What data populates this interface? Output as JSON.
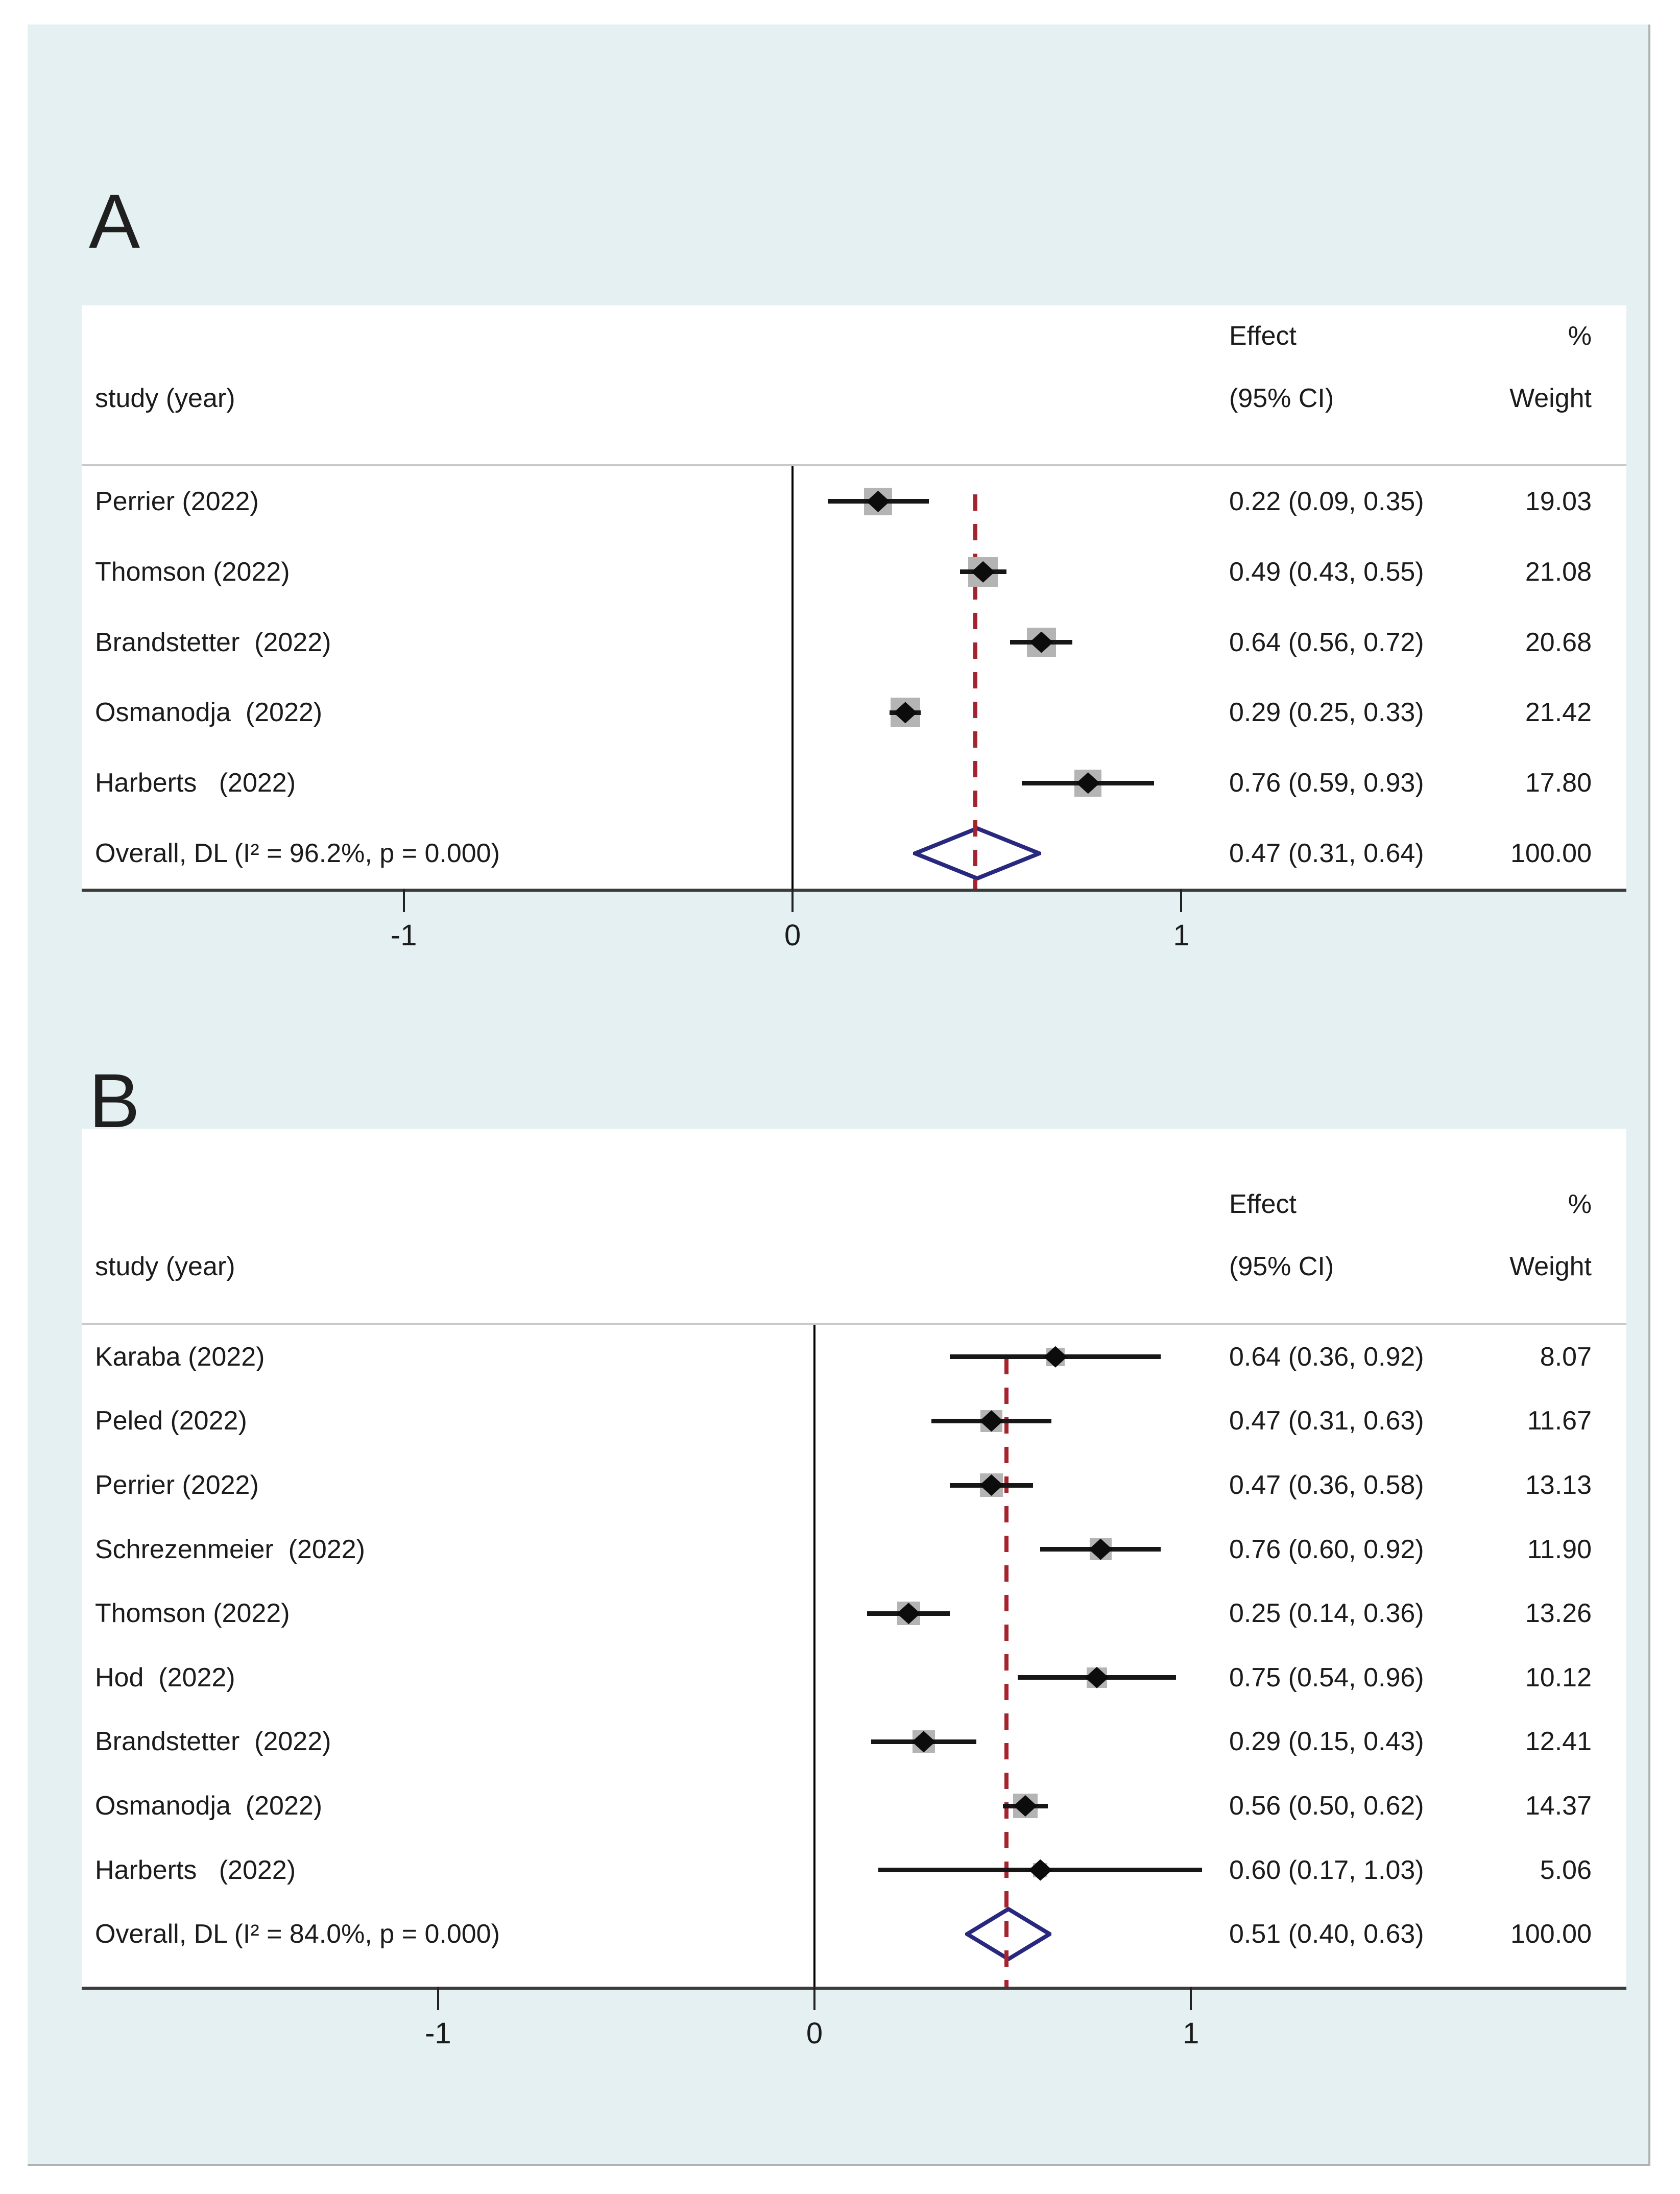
{
  "header": {
    "study_col": "study (year)",
    "effect_line1": "Effect",
    "effect_line2": "(95% CI)",
    "pct": "%",
    "weight": "Weight"
  },
  "colors": {
    "canvas_bg": "#e4f0f1",
    "panel_bg": "#ffffff",
    "text": "#1b1b1b",
    "divider_gray": "#c9c9c9",
    "axis_line": "#3b3b3b",
    "zero_line": "#000000",
    "pooled_line_red": "#a5232d",
    "ci_line": "#161616",
    "marker_black": "#0c0c0c",
    "weight_square_gray": "#b4b4b4",
    "overall_diamond_navy": "#28287f",
    "edge_shadow": "#aeb4b5"
  },
  "chart_data": [
    {
      "type": "forest",
      "panel_label": "A",
      "columns": [
        "study (year)",
        "Effect (95% CI)",
        "% Weight"
      ],
      "x_ticks": [
        "-1",
        "0",
        "1"
      ],
      "zero_line": 0,
      "pooled_line": 0.47,
      "studies": [
        {
          "study": "Perrier (2022)",
          "effect": 0.22,
          "ci_low": 0.09,
          "ci_high": 0.35,
          "weight": 19.03,
          "effect_text": "0.22 (0.09, 0.35)",
          "weight_text": "19.03"
        },
        {
          "study": "Thomson (2022)",
          "effect": 0.49,
          "ci_low": 0.43,
          "ci_high": 0.55,
          "weight": 21.08,
          "effect_text": "0.49 (0.43, 0.55)",
          "weight_text": "21.08"
        },
        {
          "study": "Brandstetter  (2022)",
          "effect": 0.64,
          "ci_low": 0.56,
          "ci_high": 0.72,
          "weight": 20.68,
          "effect_text": "0.64 (0.56, 0.72)",
          "weight_text": "20.68"
        },
        {
          "study": "Osmanodja  (2022)",
          "effect": 0.29,
          "ci_low": 0.25,
          "ci_high": 0.33,
          "weight": 21.42,
          "effect_text": "0.29 (0.25, 0.33)",
          "weight_text": "21.42"
        },
        {
          "study": "Harberts   (2022)",
          "effect": 0.76,
          "ci_low": 0.59,
          "ci_high": 0.93,
          "weight": 17.8,
          "effect_text": "0.76 (0.59, 0.93)",
          "weight_text": "17.80"
        }
      ],
      "overall": {
        "label": "Overall, DL (I² = 96.2%, p = 0.000)",
        "effect": 0.47,
        "ci_low": 0.31,
        "ci_high": 0.64,
        "weight": 100.0,
        "effect_text": "0.47 (0.31, 0.64)",
        "weight_text": "100.00"
      }
    },
    {
      "type": "forest",
      "panel_label": "B",
      "columns": [
        "study (year)",
        "Effect (95% CI)",
        "% Weight"
      ],
      "x_ticks": [
        "-1",
        "0",
        "1"
      ],
      "zero_line": 0,
      "pooled_line": 0.51,
      "studies": [
        {
          "study": "Karaba (2022)",
          "effect": 0.64,
          "ci_low": 0.36,
          "ci_high": 0.92,
          "weight": 8.07,
          "effect_text": "0.64 (0.36, 0.92)",
          "weight_text": "8.07"
        },
        {
          "study": "Peled (2022)",
          "effect": 0.47,
          "ci_low": 0.31,
          "ci_high": 0.63,
          "weight": 11.67,
          "effect_text": "0.47 (0.31, 0.63)",
          "weight_text": "11.67"
        },
        {
          "study": "Perrier (2022)",
          "effect": 0.47,
          "ci_low": 0.36,
          "ci_high": 0.58,
          "weight": 13.13,
          "effect_text": "0.47 (0.36, 0.58)",
          "weight_text": "13.13"
        },
        {
          "study": "Schrezenmeier  (2022)",
          "effect": 0.76,
          "ci_low": 0.6,
          "ci_high": 0.92,
          "weight": 11.9,
          "effect_text": "0.76 (0.60, 0.92)",
          "weight_text": "11.90"
        },
        {
          "study": "Thomson (2022)",
          "effect": 0.25,
          "ci_low": 0.14,
          "ci_high": 0.36,
          "weight": 13.26,
          "effect_text": "0.25 (0.14, 0.36)",
          "weight_text": "13.26"
        },
        {
          "study": "Hod  (2022)",
          "effect": 0.75,
          "ci_low": 0.54,
          "ci_high": 0.96,
          "weight": 10.12,
          "effect_text": "0.75 (0.54, 0.96)",
          "weight_text": "10.12"
        },
        {
          "study": "Brandstetter  (2022)",
          "effect": 0.29,
          "ci_low": 0.15,
          "ci_high": 0.43,
          "weight": 12.41,
          "effect_text": "0.29 (0.15, 0.43)",
          "weight_text": "12.41"
        },
        {
          "study": "Osmanodja  (2022)",
          "effect": 0.56,
          "ci_low": 0.5,
          "ci_high": 0.62,
          "weight": 14.37,
          "effect_text": "0.56 (0.50, 0.62)",
          "weight_text": "14.37"
        },
        {
          "study": "Harberts   (2022)",
          "effect": 0.6,
          "ci_low": 0.17,
          "ci_high": 1.03,
          "weight": 5.06,
          "effect_text": "0.60 (0.17, 1.03)",
          "weight_text": "5.06"
        }
      ],
      "overall": {
        "label": "Overall, DL (I² = 84.0%, p = 0.000)",
        "effect": 0.51,
        "ci_low": 0.4,
        "ci_high": 0.63,
        "weight": 100.0,
        "effect_text": "0.51 (0.40, 0.63)",
        "weight_text": "100.00"
      }
    }
  ]
}
